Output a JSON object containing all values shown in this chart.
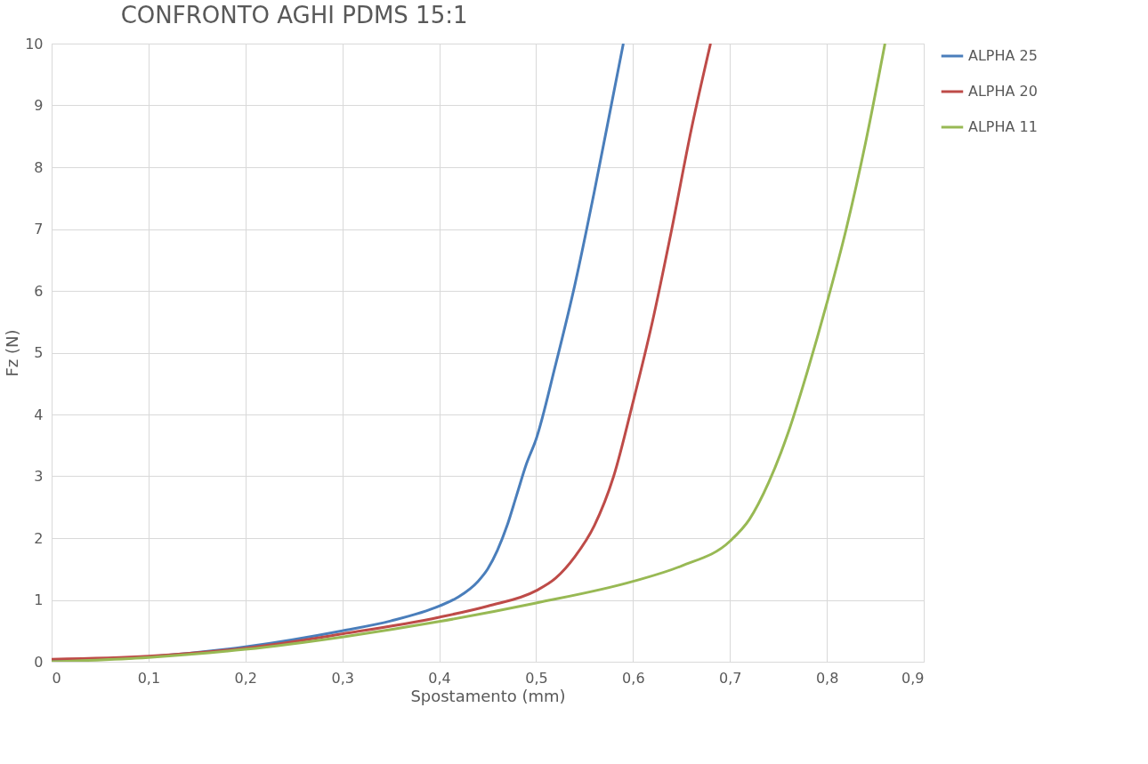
{
  "chart_data": {
    "type": "line",
    "title": "CONFRONTO AGHI PDMS 15:1",
    "xlabel": "Spostamento (mm)",
    "ylabel": "Fz (N)",
    "xlim": [
      0,
      0.9
    ],
    "ylim": [
      0,
      10
    ],
    "xticks": [
      0,
      {
        "value": 0.1,
        "label": "0,1"
      },
      {
        "value": 0.2,
        "label": "0,2"
      },
      {
        "value": 0.3,
        "label": "0,3"
      },
      {
        "value": 0.4,
        "label": "0,4"
      },
      {
        "value": 0.5,
        "label": "0,5"
      },
      {
        "value": 0.6,
        "label": "0,6"
      },
      {
        "value": 0.7,
        "label": "0,7"
      },
      {
        "value": 0.8,
        "label": "0,8"
      },
      {
        "value": 0.9,
        "label": "0,9"
      }
    ],
    "yticks": [
      0,
      1,
      2,
      3,
      4,
      5,
      6,
      7,
      8,
      9,
      10
    ],
    "grid": true,
    "legend": "right",
    "marker": "none",
    "line_style": "solid",
    "series": [
      {
        "name": "ALPHA 25",
        "color": "#4a7ebb",
        "x": [
          0,
          0.1,
          0.2,
          0.3,
          0.35,
          0.4,
          0.42,
          0.44,
          0.45,
          0.46,
          0.47,
          0.48,
          0.49,
          0.5,
          0.52,
          0.54,
          0.56,
          0.58,
          0.59
        ],
        "values": [
          0.02,
          0.08,
          0.24,
          0.5,
          0.66,
          0.9,
          1.05,
          1.3,
          1.5,
          1.8,
          2.2,
          2.7,
          3.2,
          3.6,
          4.8,
          6.1,
          7.6,
          9.2,
          10
        ]
      },
      {
        "name": "ALPHA 20",
        "color": "#be4b48",
        "x": [
          0,
          0.1,
          0.2,
          0.3,
          0.4,
          0.45,
          0.5,
          0.52,
          0.54,
          0.56,
          0.58,
          0.6,
          0.62,
          0.64,
          0.66,
          0.68
        ],
        "values": [
          0.04,
          0.09,
          0.22,
          0.45,
          0.72,
          0.9,
          1.15,
          1.35,
          1.7,
          2.2,
          3.0,
          4.2,
          5.5,
          7.0,
          8.6,
          10
        ]
      },
      {
        "name": "ALPHA 11",
        "color": "#98b954",
        "x": [
          0,
          0.1,
          0.2,
          0.3,
          0.4,
          0.5,
          0.6,
          0.65,
          0.7,
          0.72,
          0.74,
          0.76,
          0.78,
          0.8,
          0.82,
          0.84,
          0.86
        ],
        "values": [
          0.0,
          0.07,
          0.2,
          0.4,
          0.65,
          0.95,
          1.3,
          1.55,
          1.95,
          2.3,
          2.9,
          3.7,
          4.7,
          5.8,
          7.0,
          8.4,
          10
        ]
      }
    ]
  }
}
